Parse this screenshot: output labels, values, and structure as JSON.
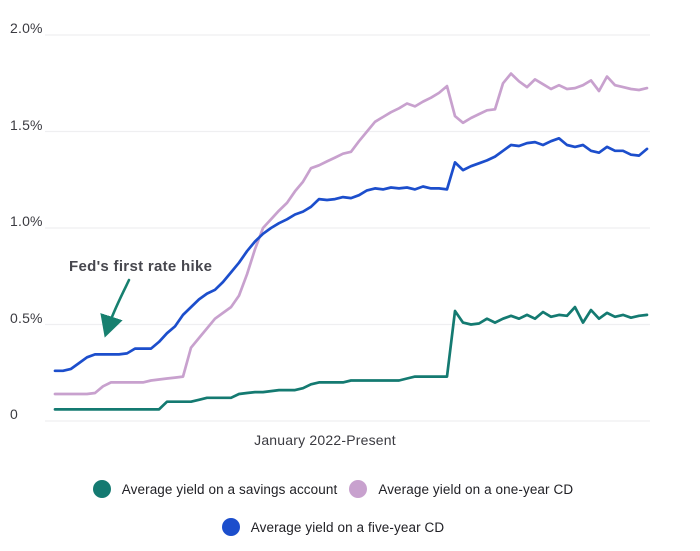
{
  "chart_data": {
    "type": "line",
    "title": "",
    "xlabel": "January 2022-Present",
    "ylim": [
      0,
      2.0
    ],
    "grid": "horizontal",
    "legend_position": "bottom",
    "yticks": [
      {
        "label": "2.0%",
        "value": 2.0
      },
      {
        "label": "1.5%",
        "value": 1.5
      },
      {
        "label": "1.0%",
        "value": 1.0
      },
      {
        "label": "0.5%",
        "value": 0.5
      },
      {
        "label": "0",
        "value": 0.0
      }
    ],
    "annotation": {
      "text": "Fed's first rate hike",
      "arrow_color": "#17806F",
      "points_to": "start of rate rise in early 2022"
    },
    "legend_rows": [
      [
        0,
        1
      ],
      [
        2
      ]
    ],
    "series": [
      {
        "name": "Average yield on a savings account",
        "color": "#147A71",
        "values": [
          0.06,
          0.06,
          0.06,
          0.06,
          0.06,
          0.06,
          0.06,
          0.06,
          0.06,
          0.06,
          0.06,
          0.06,
          0.06,
          0.06,
          0.1,
          0.1,
          0.1,
          0.1,
          0.11,
          0.12,
          0.12,
          0.12,
          0.12,
          0.14,
          0.145,
          0.15,
          0.15,
          0.155,
          0.16,
          0.16,
          0.16,
          0.17,
          0.19,
          0.2,
          0.2,
          0.2,
          0.2,
          0.21,
          0.21,
          0.21,
          0.21,
          0.21,
          0.21,
          0.21,
          0.22,
          0.23,
          0.23,
          0.23,
          0.23,
          0.23,
          0.57,
          0.51,
          0.5,
          0.505,
          0.53,
          0.51,
          0.53,
          0.545,
          0.53,
          0.55,
          0.53,
          0.565,
          0.54,
          0.55,
          0.545,
          0.59,
          0.51,
          0.575,
          0.53,
          0.56,
          0.54,
          0.55,
          0.535,
          0.545,
          0.55
        ]
      },
      {
        "name": "Average yield on a one-year CD",
        "color": "#C8A1CE",
        "values": [
          0.14,
          0.14,
          0.14,
          0.14,
          0.14,
          0.145,
          0.18,
          0.2,
          0.2,
          0.2,
          0.2,
          0.2,
          0.21,
          0.215,
          0.22,
          0.225,
          0.23,
          0.38,
          0.43,
          0.48,
          0.53,
          0.56,
          0.59,
          0.65,
          0.76,
          0.89,
          1.0,
          1.045,
          1.09,
          1.13,
          1.19,
          1.24,
          1.31,
          1.325,
          1.345,
          1.365,
          1.385,
          1.395,
          1.45,
          1.5,
          1.55,
          1.575,
          1.6,
          1.62,
          1.645,
          1.63,
          1.655,
          1.675,
          1.7,
          1.735,
          1.58,
          1.545,
          1.57,
          1.59,
          1.61,
          1.615,
          1.75,
          1.8,
          1.76,
          1.73,
          1.77,
          1.745,
          1.72,
          1.74,
          1.72,
          1.725,
          1.74,
          1.765,
          1.71,
          1.785,
          1.74,
          1.73,
          1.72,
          1.715,
          1.725
        ]
      },
      {
        "name": "Average yield on a five-year CD",
        "color": "#1C4ECC",
        "values": [
          0.26,
          0.26,
          0.27,
          0.3,
          0.33,
          0.345,
          0.345,
          0.345,
          0.345,
          0.35,
          0.375,
          0.375,
          0.375,
          0.41,
          0.455,
          0.49,
          0.55,
          0.59,
          0.63,
          0.66,
          0.68,
          0.72,
          0.77,
          0.82,
          0.88,
          0.93,
          0.97,
          1.0,
          1.025,
          1.045,
          1.07,
          1.085,
          1.11,
          1.15,
          1.145,
          1.15,
          1.16,
          1.155,
          1.17,
          1.195,
          1.205,
          1.2,
          1.21,
          1.205,
          1.21,
          1.2,
          1.215,
          1.205,
          1.205,
          1.2,
          1.34,
          1.3,
          1.32,
          1.335,
          1.35,
          1.37,
          1.4,
          1.43,
          1.425,
          1.44,
          1.445,
          1.43,
          1.45,
          1.465,
          1.43,
          1.42,
          1.43,
          1.4,
          1.39,
          1.42,
          1.4,
          1.4,
          1.38,
          1.375,
          1.41
        ]
      }
    ]
  }
}
